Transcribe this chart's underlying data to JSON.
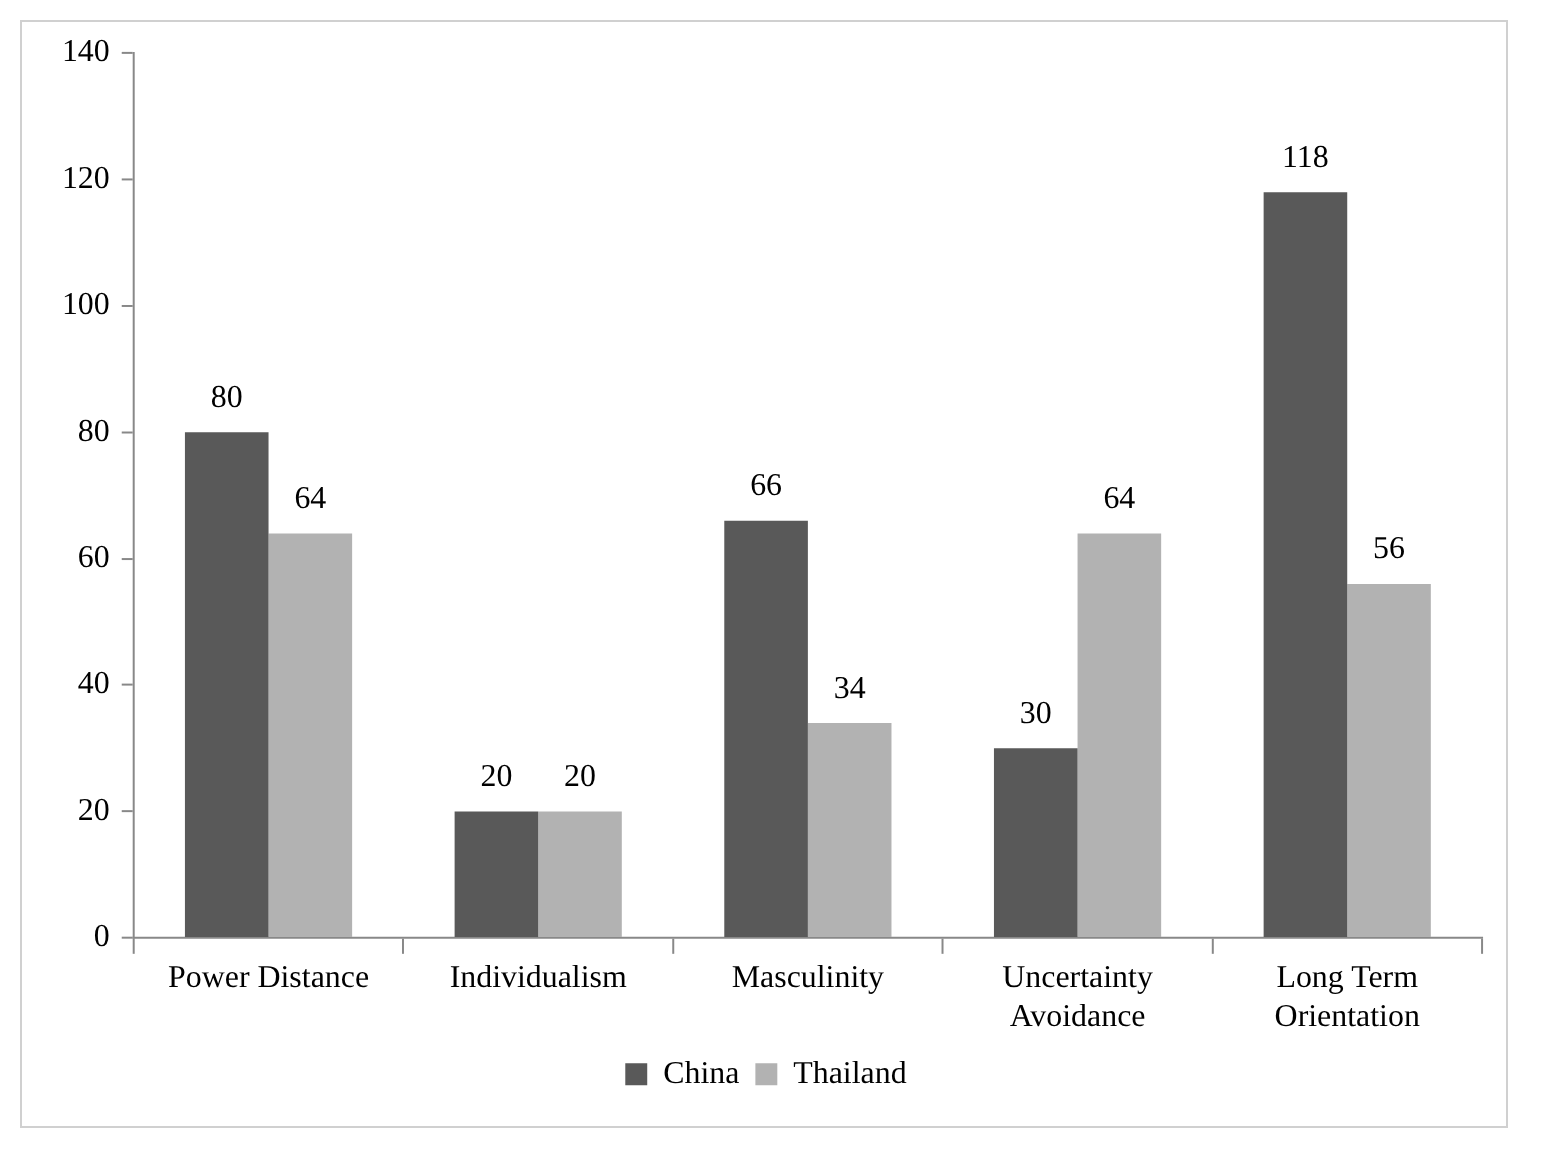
{
  "chart_data": {
    "type": "bar",
    "categories": [
      "Power Distance",
      "Individualism",
      "Masculinity",
      "Uncertainty Avoidance",
      "Long Term Orientation"
    ],
    "series": [
      {
        "name": "China",
        "color": "#595959",
        "values": [
          80,
          20,
          66,
          30,
          118
        ]
      },
      {
        "name": "Thailand",
        "color": "#b2b2b2",
        "values": [
          64,
          20,
          34,
          64,
          56
        ]
      }
    ],
    "ylim": [
      0,
      140
    ],
    "yticks": [
      0,
      20,
      40,
      60,
      80,
      100,
      120,
      140
    ],
    "grid": false,
    "legend": "bottom",
    "data_labels": true
  }
}
